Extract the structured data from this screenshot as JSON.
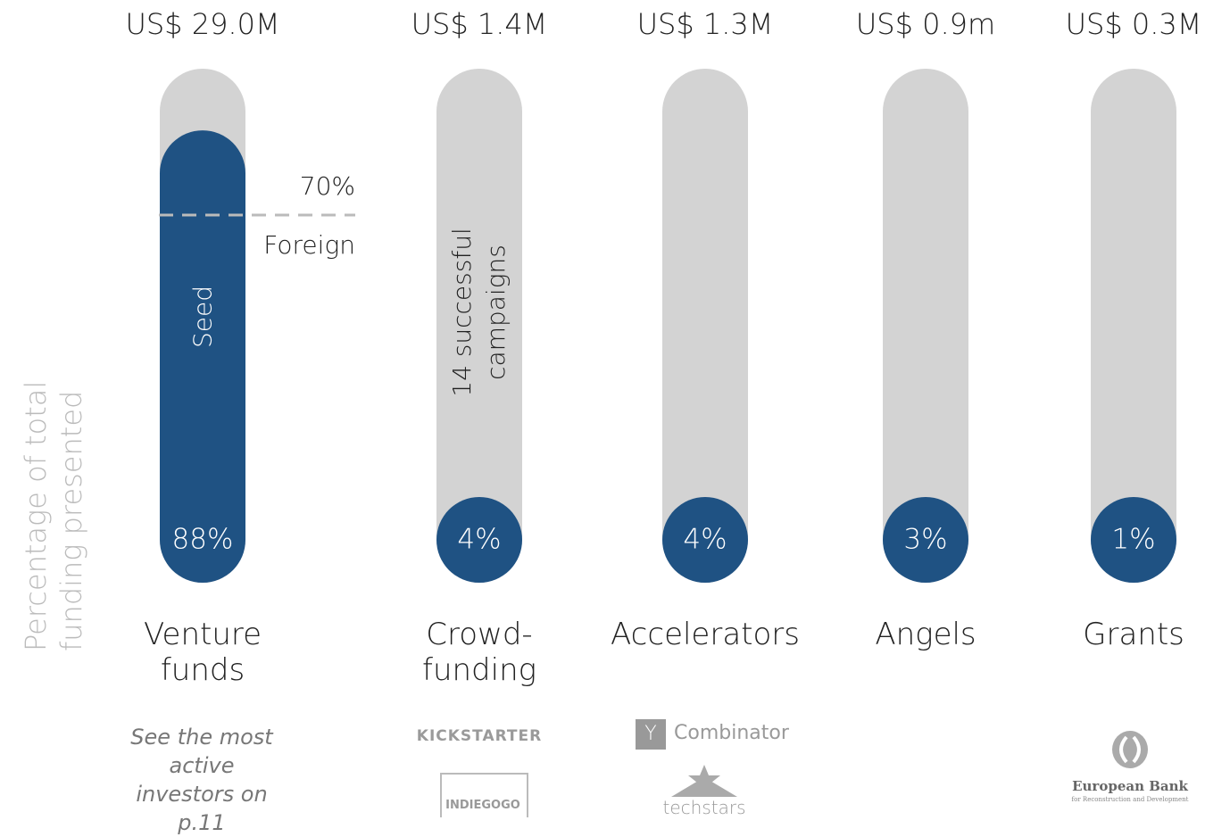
{
  "chart_data": {
    "type": "bar",
    "y_label": "Percentage of total funding presented",
    "categories": [
      "Venture funds",
      "Crowd-funding",
      "Accelerators",
      "Angels",
      "Grants"
    ],
    "values": [
      88,
      4,
      4,
      3,
      1
    ],
    "value_labels": [
      "88%",
      "4%",
      "4%",
      "3%",
      "1%"
    ],
    "amount_labels": [
      "US$ 29.0M",
      "US$ 1.4M",
      "US$ 1.3M",
      "US$ 0.9m",
      "US$ 0.3M"
    ],
    "ylim": [
      0,
      100
    ],
    "color": "#1f5283",
    "track_color": "#d3d3d3",
    "annotations": {
      "foreign_share": "70%",
      "foreign": "Foreign",
      "seed": "Seed",
      "campaigns": "14 successful campaigns"
    },
    "note": "See the most active investors on p.11",
    "logos": {
      "kickstarter": "KICKSTARTER",
      "indiegogo": "INDIEGOGO",
      "yc_mark": "Y",
      "yc_name": "Combinator",
      "techstars": "techstars",
      "ebrd_name": "European Bank",
      "ebrd_sub": "for Reconstruction and Development"
    }
  }
}
